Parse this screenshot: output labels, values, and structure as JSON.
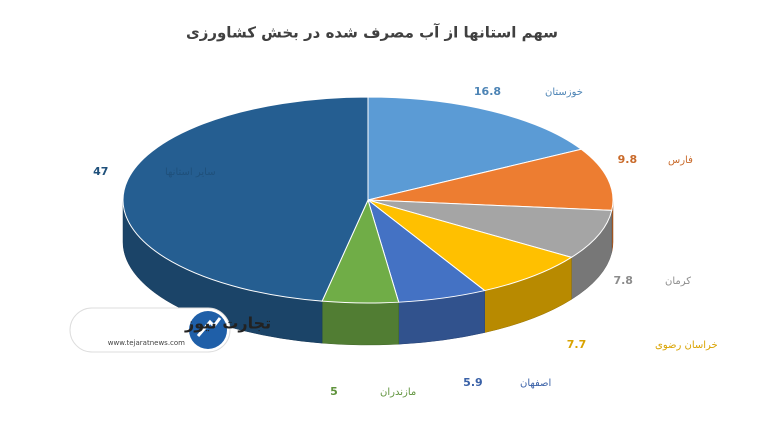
{
  "chart_data": {
    "type": "pie3d",
    "title": "سهم استانها از آب مصرف شده در بخش کشاورزی",
    "categories": [
      "خوزستان",
      "فارس",
      "کرمان",
      "خراسان رضوی",
      "اصفهان",
      "مازندران",
      "سایر استانها"
    ],
    "values": [
      16.8,
      9.8,
      7.8,
      7.7,
      5.9,
      5,
      47
    ],
    "colors": [
      "#5b9bd5",
      "#ed7d31",
      "#a5a5a5",
      "#ffc000",
      "#4472c4",
      "#70ad47",
      "#255e91"
    ]
  },
  "logo": {
    "name": "تجارت نیوز",
    "url": "www.tejaratnews.com"
  }
}
